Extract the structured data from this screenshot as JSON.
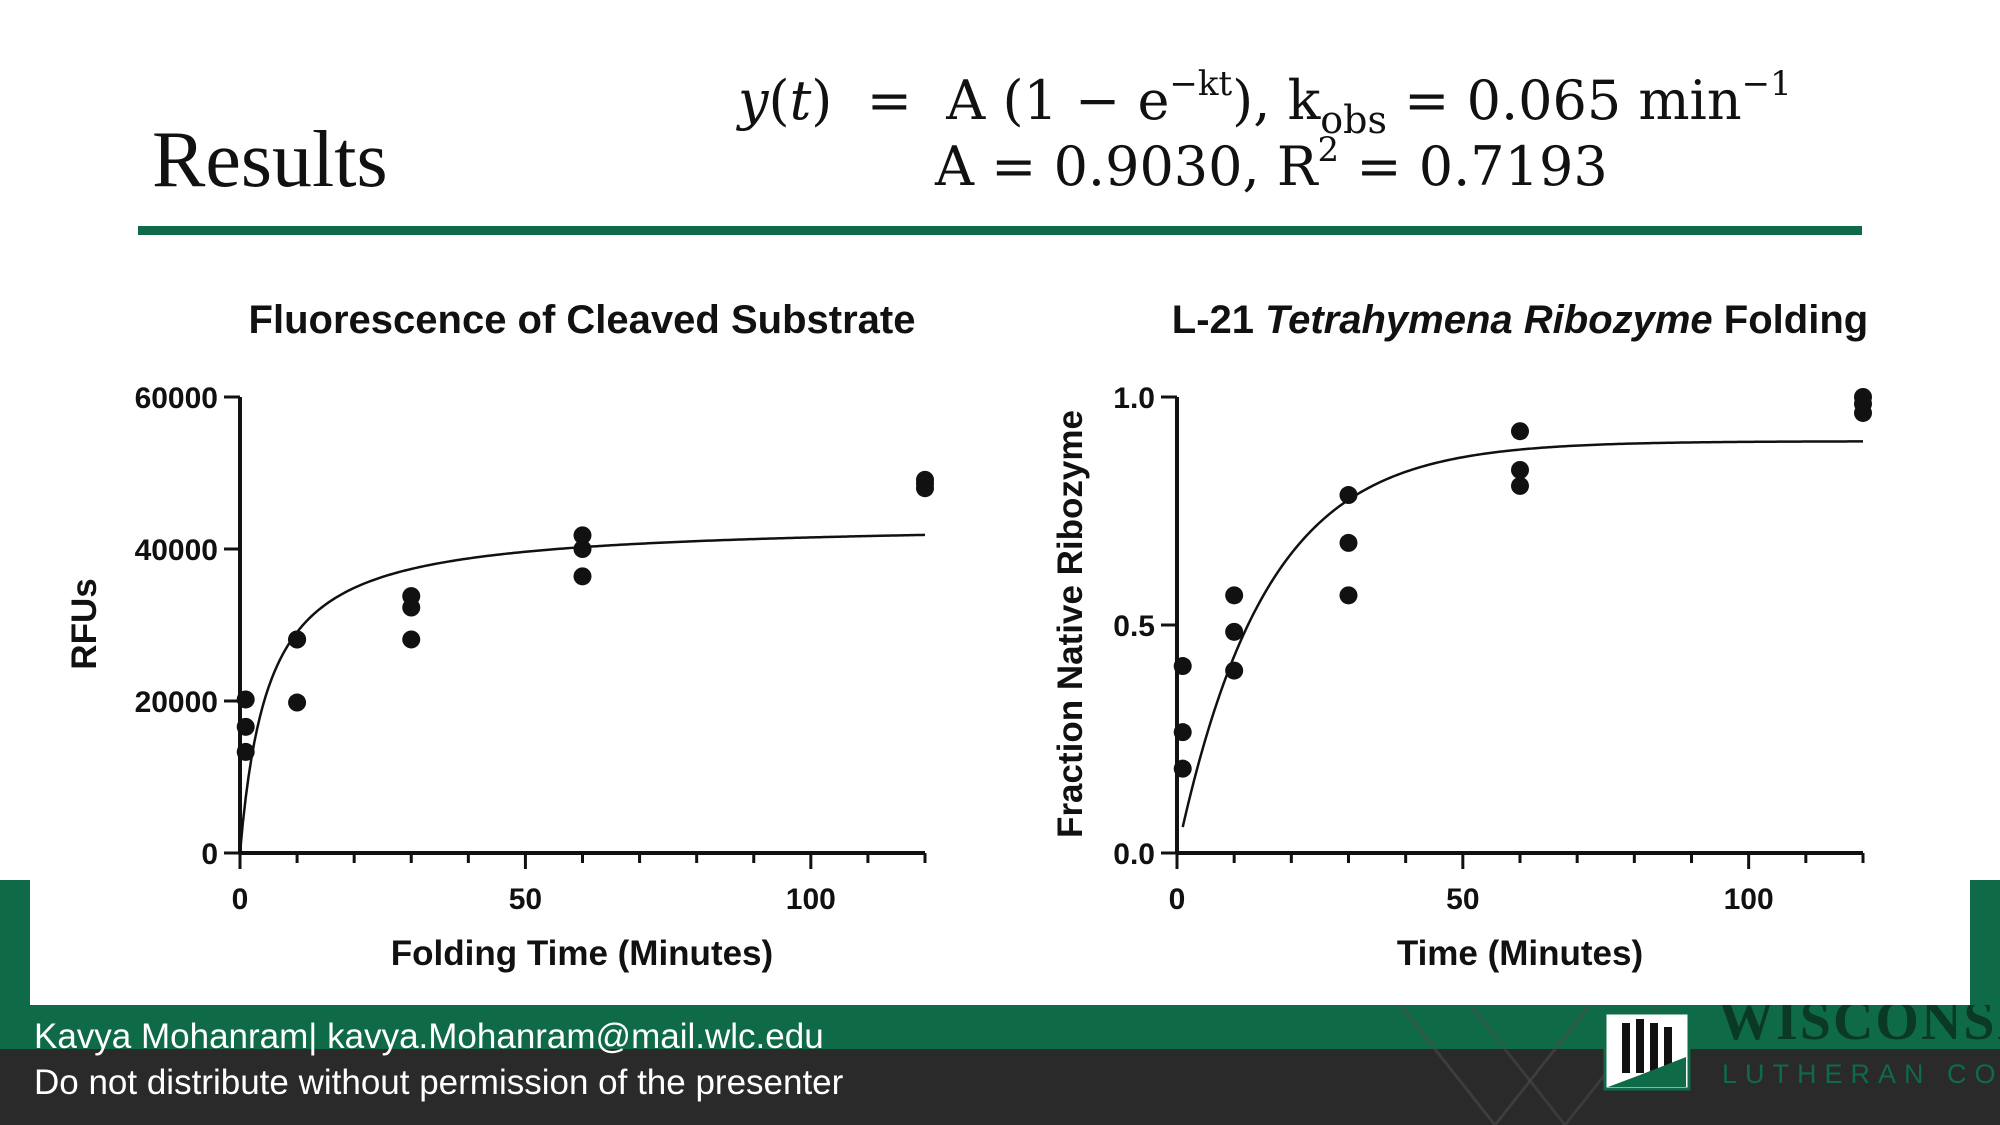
{
  "slide": {
    "title": "Results",
    "equation": {
      "line1": {
        "lhs_y": "y",
        "lhs_t": "t",
        "model_a": "A (1 − e",
        "exponent": "−kt",
        "model_close": "), k",
        "k_sub": "obs",
        "k_value": " = 0.065 min",
        "unit_exp": "−1"
      },
      "line2": {
        "a_text": "A  =  0.9030, R",
        "r_exp": "2",
        "r_value": " = 0.7193"
      }
    },
    "accent_color": "#0f6b47"
  },
  "footer": {
    "line1": "Kavya Mohanram| kavya.Mohanram@mail.wlc.edu",
    "line2": "Do not distribute without permission of the presenter",
    "logo_text_top": "WISCONSIN",
    "logo_text_bottom": "LUTHERAN COLLEGE"
  },
  "chart_data": [
    {
      "type": "scatter",
      "title": "Fluorescence of Cleaved Substrate",
      "xlabel": "Folding Time (Minutes)",
      "ylabel": "RFUs",
      "xlim": [
        0,
        120
      ],
      "ylim": [
        0,
        60000
      ],
      "x_ticks": [
        0,
        50,
        100
      ],
      "x_tick_labels": [
        "0",
        "50",
        "100"
      ],
      "y_ticks": [
        0,
        20000,
        40000,
        60000
      ],
      "y_tick_labels": [
        "0",
        "20000",
        "40000",
        "60000"
      ],
      "x_minor_step": 10,
      "points": [
        {
          "x": 1,
          "y": 20200
        },
        {
          "x": 1,
          "y": 16600
        },
        {
          "x": 1,
          "y": 13300
        },
        {
          "x": 10,
          "y": 28100
        },
        {
          "x": 10,
          "y": 28100
        },
        {
          "x": 10,
          "y": 19800
        },
        {
          "x": 30,
          "y": 33800
        },
        {
          "x": 30,
          "y": 32300
        },
        {
          "x": 30,
          "y": 28100
        },
        {
          "x": 60,
          "y": 41800
        },
        {
          "x": 60,
          "y": 40000
        },
        {
          "x": 60,
          "y": 36400
        },
        {
          "x": 120,
          "y": 49100
        },
        {
          "x": 120,
          "y": 48600
        },
        {
          "x": 120,
          "y": 48000
        }
      ],
      "fit": {
        "model": "hyperbola",
        "ymax": 43600,
        "half": 5,
        "x_range": [
          0,
          120
        ]
      }
    },
    {
      "type": "scatter",
      "title_parts": [
        "L-21 ",
        "Tetrahymena Ribozyme",
        " Folding"
      ],
      "xlabel": "Time (Minutes)",
      "ylabel": "Fraction Native Ribozyme",
      "xlim": [
        0,
        120
      ],
      "ylim": [
        0,
        1.0
      ],
      "x_ticks": [
        0,
        50,
        100
      ],
      "x_tick_labels": [
        "0",
        "50",
        "100"
      ],
      "y_ticks": [
        0,
        0.5,
        1.0
      ],
      "y_tick_labels": [
        "0.0",
        "0.5",
        "1.0"
      ],
      "x_minor_step": 10,
      "points": [
        {
          "x": 1,
          "y": 0.41
        },
        {
          "x": 1,
          "y": 0.265
        },
        {
          "x": 1,
          "y": 0.185
        },
        {
          "x": 10,
          "y": 0.565
        },
        {
          "x": 10,
          "y": 0.485
        },
        {
          "x": 10,
          "y": 0.4
        },
        {
          "x": 30,
          "y": 0.785
        },
        {
          "x": 30,
          "y": 0.68
        },
        {
          "x": 30,
          "y": 0.565
        },
        {
          "x": 60,
          "y": 0.925
        },
        {
          "x": 60,
          "y": 0.84
        },
        {
          "x": 60,
          "y": 0.805
        },
        {
          "x": 120,
          "y": 1.0
        },
        {
          "x": 120,
          "y": 0.985
        },
        {
          "x": 120,
          "y": 0.965
        }
      ],
      "fit": {
        "model": "exponential",
        "A": 0.903,
        "k": 0.065,
        "x_range": [
          1,
          120
        ]
      }
    }
  ]
}
